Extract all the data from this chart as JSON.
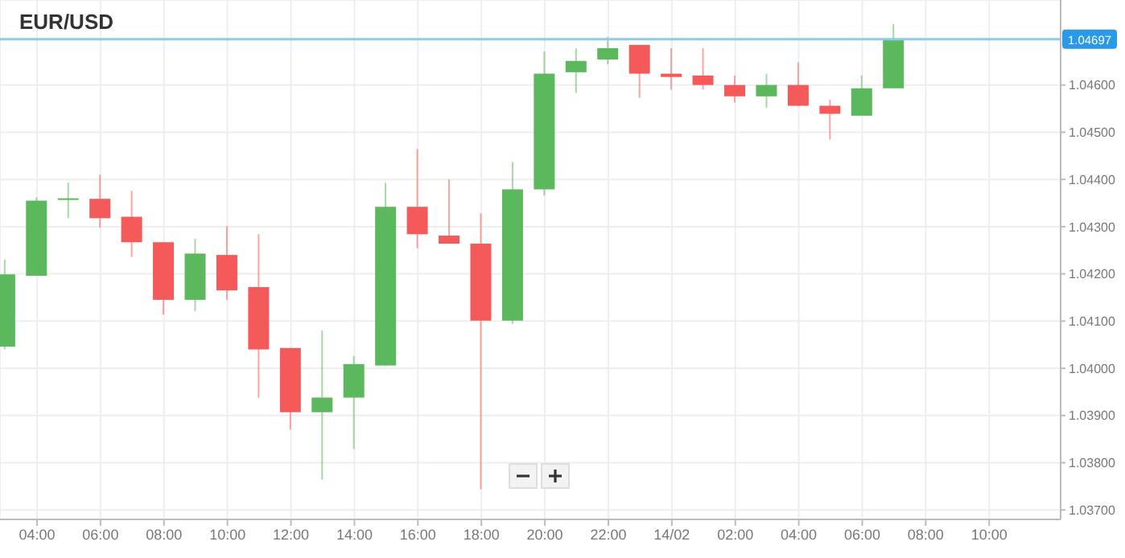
{
  "chart_data": {
    "type": "candlestick",
    "title": "EUR/USD",
    "x": [
      "--02-13T03:00",
      "--02-13T04:00",
      "--02-13T05:00",
      "--02-13T06:00",
      "--02-13T07:00",
      "--02-13T08:00",
      "--02-13T09:00",
      "--02-13T10:00",
      "--02-13T11:00",
      "--02-13T12:00",
      "--02-13T13:00",
      "--02-13T14:00",
      "--02-13T15:00",
      "--02-13T16:00",
      "--02-13T17:00",
      "--02-13T18:00",
      "--02-13T19:00",
      "--02-13T20:00",
      "--02-13T21:00",
      "--02-13T22:00",
      "--02-13T23:00",
      "--02-14T00:00",
      "--02-14T01:00",
      "--02-14T02:00",
      "--02-14T03:00",
      "--02-14T04:00",
      "--02-14T05:00",
      "--02-14T06:00",
      "--02-14T07:00"
    ],
    "ohlc": [
      [
        1.04046,
        1.0423,
        1.0404,
        1.04199
      ],
      [
        1.04196,
        1.04362,
        1.04196,
        1.04355
      ],
      [
        1.04357,
        1.04393,
        1.04318,
        1.0436
      ],
      [
        1.04359,
        1.0441,
        1.04298,
        1.04318
      ],
      [
        1.04321,
        1.04376,
        1.04236,
        1.04267
      ],
      [
        1.04267,
        1.04267,
        1.04114,
        1.04145
      ],
      [
        1.04145,
        1.04274,
        1.04121,
        1.04243
      ],
      [
        1.0424,
        1.04301,
        1.04145,
        1.04165
      ],
      [
        1.04172,
        1.04284,
        1.03938,
        1.0404
      ],
      [
        1.04043,
        1.04043,
        1.0387,
        1.03907
      ],
      [
        1.03907,
        1.0408,
        1.03764,
        1.03938
      ],
      [
        1.03938,
        1.04026,
        1.03829,
        1.04009
      ],
      [
        1.04006,
        1.04393,
        1.04006,
        1.04342
      ],
      [
        1.04342,
        1.04464,
        1.04254,
        1.04284
      ],
      [
        1.04281,
        1.044,
        1.04264,
        1.04264
      ],
      [
        1.04264,
        1.04328,
        1.03744,
        1.04101
      ],
      [
        1.04101,
        1.04437,
        1.04094,
        1.04379
      ],
      [
        1.04379,
        1.04671,
        1.04366,
        1.04624
      ],
      [
        1.04627,
        1.04678,
        1.04583,
        1.04651
      ],
      [
        1.04654,
        1.04702,
        1.04644,
        1.04678
      ],
      [
        1.04685,
        1.04685,
        1.04573,
        1.04624
      ],
      [
        1.04624,
        1.04678,
        1.0459,
        1.04617
      ],
      [
        1.0462,
        1.04678,
        1.0459,
        1.046
      ],
      [
        1.046,
        1.0462,
        1.04563,
        1.04576
      ],
      [
        1.04576,
        1.04624,
        1.04552,
        1.046
      ],
      [
        1.046,
        1.04648,
        1.04556,
        1.04556
      ],
      [
        1.04556,
        1.04569,
        1.04485,
        1.04539
      ],
      [
        1.04535,
        1.0462,
        1.04535,
        1.04593
      ],
      [
        1.04593,
        1.04729,
        1.04593,
        1.04697
      ]
    ],
    "colors": [
      "#5cb85c",
      "#5cb85c",
      "#5cb85c",
      "#f55a5a",
      "#f55a5a",
      "#f55a5a",
      "#5cb85c",
      "#f55a5a",
      "#f55a5a",
      "#f55a5a",
      "#5cb85c",
      "#5cb85c",
      "#5cb85c",
      "#f55a5a",
      "#f55a5a",
      "#f55a5a",
      "#5cb85c",
      "#5cb85c",
      "#5cb85c",
      "#5cb85c",
      "#f55a5a",
      "#f55a5a",
      "#f55a5a",
      "#f55a5a",
      "#5cb85c",
      "#f55a5a",
      "#f55a5a",
      "#5cb85c",
      "#5cb85c"
    ],
    "xlim": [
      "--02-13T02:50",
      "--02-14T12:15"
    ],
    "xticks": [
      {
        "value": "--02-13T04:00",
        "label": "04:00"
      },
      {
        "value": "--02-13T06:00",
        "label": "06:00"
      },
      {
        "value": "--02-13T08:00",
        "label": "08:00"
      },
      {
        "value": "--02-13T10:00",
        "label": "10:00"
      },
      {
        "value": "--02-13T12:00",
        "label": "12:00"
      },
      {
        "value": "--02-13T14:00",
        "label": "14:00"
      },
      {
        "value": "--02-13T16:00",
        "label": "16:00"
      },
      {
        "value": "--02-13T18:00",
        "label": "18:00"
      },
      {
        "value": "--02-13T20:00",
        "label": "20:00"
      },
      {
        "value": "--02-13T22:00",
        "label": "22:00"
      },
      {
        "value": "--02-14T00:00",
        "label": "14/02"
      },
      {
        "value": "--02-14T02:00",
        "label": "02:00"
      },
      {
        "value": "--02-14T04:00",
        "label": "04:00"
      },
      {
        "value": "--02-14T06:00",
        "label": "06:00"
      },
      {
        "value": "--02-14T08:00",
        "label": "08:00"
      },
      {
        "value": "--02-14T10:00",
        "label": "10:00"
      }
    ],
    "ylim": [
      1.0368,
      1.0478
    ],
    "yticks": [
      {
        "value": 1.037,
        "label": "1.03700"
      },
      {
        "value": 1.038,
        "label": "1.03800"
      },
      {
        "value": 1.039,
        "label": "1.03900"
      },
      {
        "value": 1.04,
        "label": "1.04000"
      },
      {
        "value": 1.041,
        "label": "1.04100"
      },
      {
        "value": 1.042,
        "label": "1.04200"
      },
      {
        "value": 1.043,
        "label": "1.04300"
      },
      {
        "value": 1.044,
        "label": "1.04400"
      },
      {
        "value": 1.045,
        "label": "1.04500"
      },
      {
        "value": 1.046,
        "label": "1.04600"
      }
    ],
    "ref_lines": [
      {
        "axis": "y",
        "value": 1.04697,
        "label": "1.04697",
        "color": "#8ccbec"
      }
    ],
    "grid": true
  }
}
